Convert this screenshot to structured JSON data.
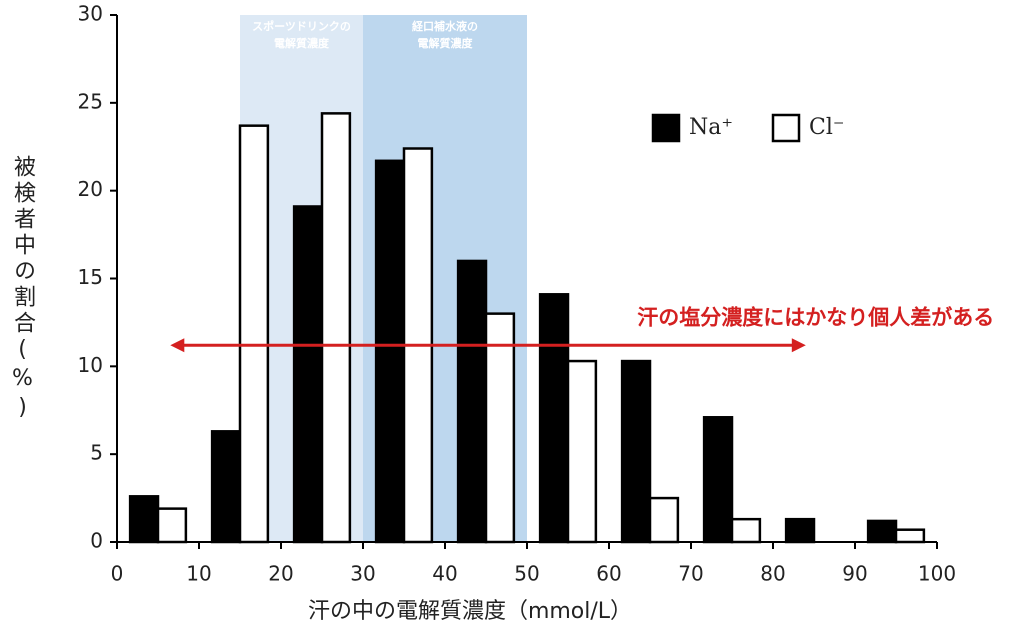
{
  "chart_data": {
    "type": "histogram",
    "xlabel": "汗の中の電解質濃度（mmol/L）",
    "ylabel": "被検者中の割合(%)",
    "bins": [
      0,
      10,
      20,
      30,
      40,
      50,
      60,
      70,
      80,
      90,
      100
    ],
    "series": [
      {
        "name": "Na⁺",
        "color": "#000000",
        "values": [
          2.6,
          6.3,
          19.1,
          21.7,
          16.0,
          14.1,
          10.3,
          7.1,
          1.3,
          1.2
        ]
      },
      {
        "name": "Cl⁻",
        "color": "#ffffff",
        "values": [
          1.9,
          23.7,
          24.4,
          22.4,
          13.0,
          10.3,
          2.5,
          1.3,
          0,
          0.7
        ]
      }
    ],
    "xlim": [
      0,
      100
    ],
    "xticks": [
      0,
      10,
      20,
      30,
      40,
      50,
      60,
      70,
      80,
      90,
      100
    ],
    "ylim": [
      0,
      30
    ],
    "yticks": [
      0,
      5,
      10,
      15,
      20,
      25,
      30
    ],
    "legend": "upper right",
    "bands": [
      {
        "from": 15,
        "to": 30,
        "color": "#dde9f5",
        "label_lines": [
          "スポーツドリンクの",
          "電解質濃度"
        ]
      },
      {
        "from": 30,
        "to": 50,
        "color": "#bdd7ee",
        "label_lines": [
          "経口補水液の",
          "電解質濃度"
        ]
      }
    ],
    "arrow": {
      "from": 6.5,
      "to": 84,
      "y": 11.2,
      "color": "#d42020",
      "text": "汗の塩分濃度にはかなり個人差がある"
    }
  }
}
